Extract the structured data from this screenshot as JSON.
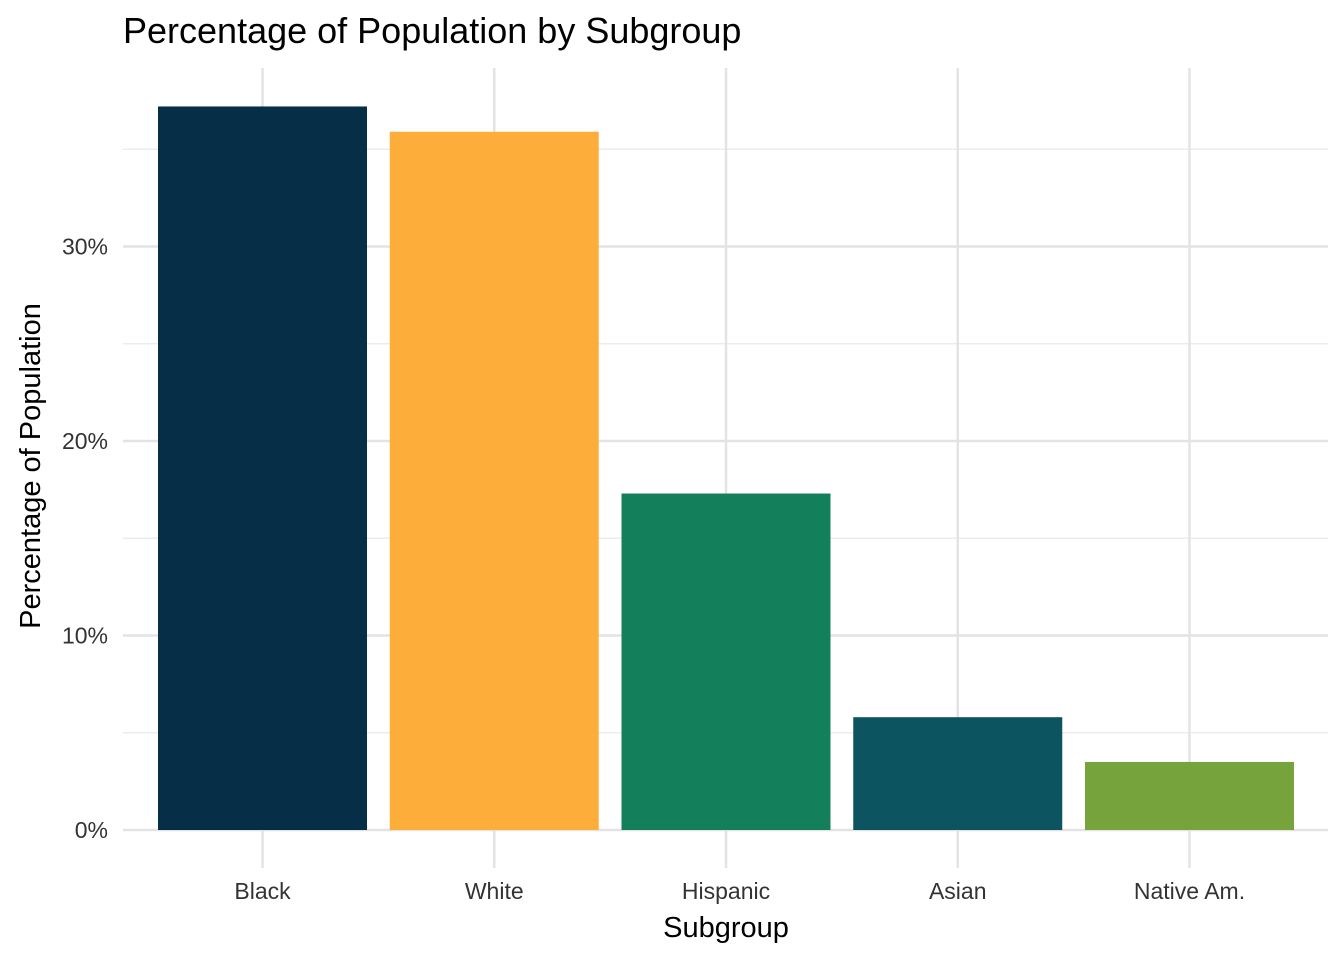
{
  "chart_data": {
    "type": "bar",
    "title": "Percentage of Population by Subgroup",
    "xlabel": "Subgroup",
    "ylabel": "Percentage of Population",
    "categories": [
      "Black",
      "White",
      "Hispanic",
      "Asian",
      "Native Am."
    ],
    "values": [
      37.2,
      35.9,
      17.3,
      5.8,
      3.5
    ],
    "colors": [
      "#062E47",
      "#FDAD3A",
      "#13805B",
      "#0C5460",
      "#77A33C"
    ],
    "ylim": [
      0,
      39
    ],
    "yticks": [
      0,
      10,
      20,
      30
    ],
    "ytick_labels": [
      "0%",
      "10%",
      "20%",
      "30%"
    ],
    "grid": true,
    "legend": "none"
  }
}
